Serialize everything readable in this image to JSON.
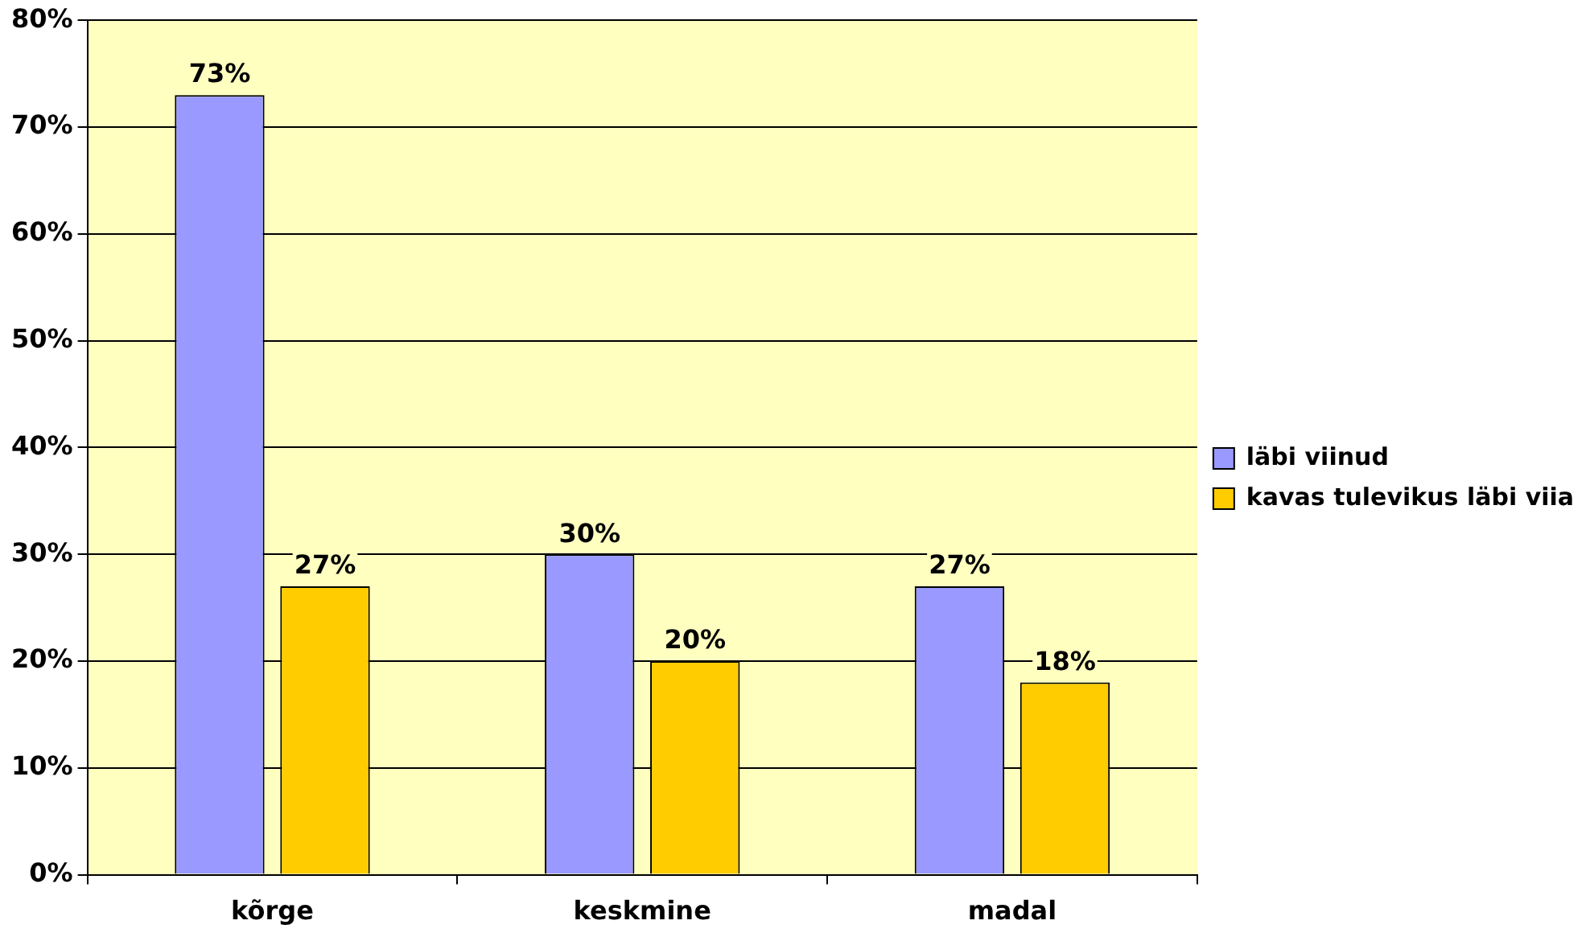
{
  "chart_data": {
    "type": "bar",
    "categories": [
      "kõrge",
      "keskmine",
      "madal"
    ],
    "series": [
      {
        "name": "läbi viinud",
        "color": "#9999ff",
        "values": [
          73,
          30,
          27
        ],
        "value_labels": [
          "73%",
          "30%",
          "27%"
        ]
      },
      {
        "name": "kavas tulevikus läbi viia",
        "color": "#ffcc00",
        "values": [
          27,
          20,
          18
        ],
        "value_labels": [
          "27%",
          "20%",
          "18%"
        ]
      }
    ],
    "ylim": [
      0,
      80
    ],
    "yticks": [
      {
        "value": 0,
        "label": "0%"
      },
      {
        "value": 10,
        "label": "10%"
      },
      {
        "value": 20,
        "label": "20%"
      },
      {
        "value": 30,
        "label": "30%"
      },
      {
        "value": 40,
        "label": "40%"
      },
      {
        "value": 50,
        "label": "50%"
      },
      {
        "value": 60,
        "label": "60%"
      },
      {
        "value": 70,
        "label": "70%"
      },
      {
        "value": 80,
        "label": "80%"
      }
    ],
    "grid": "y",
    "legend": "right"
  }
}
